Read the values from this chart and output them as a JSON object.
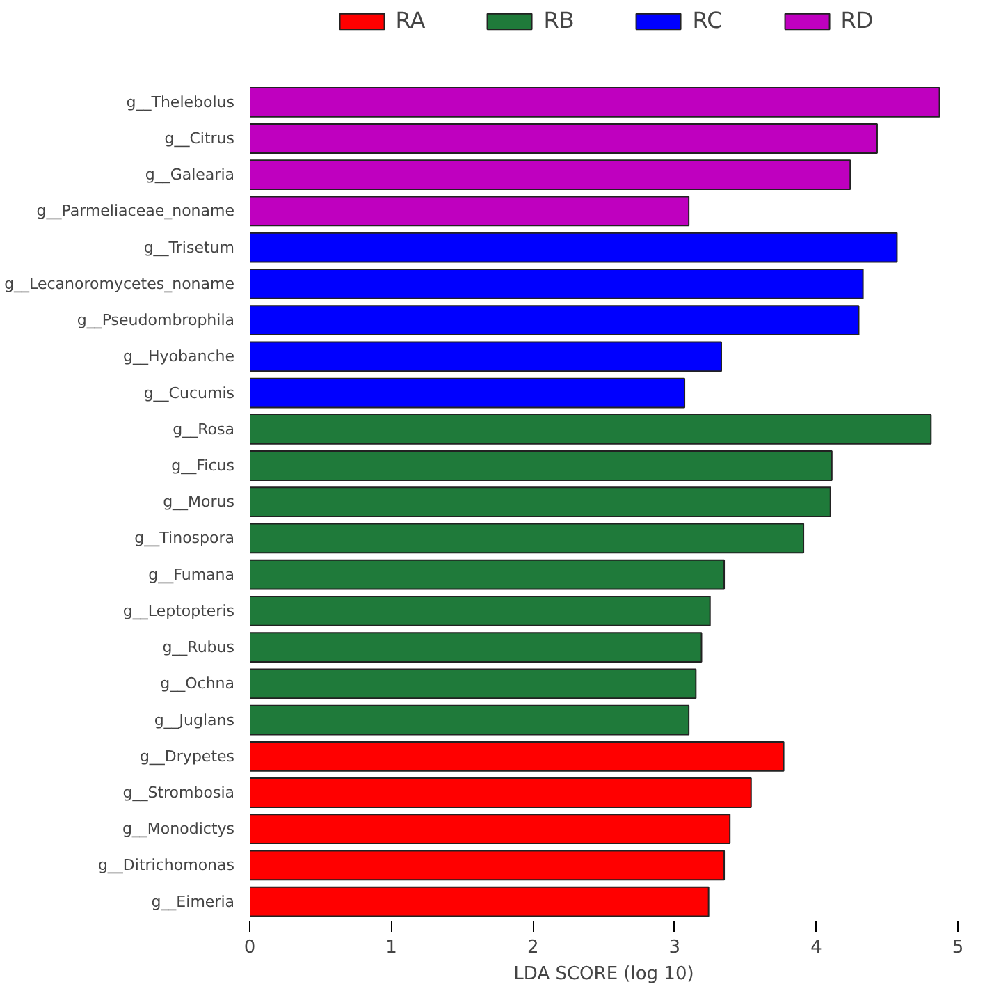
{
  "chart_data": {
    "type": "bar",
    "orientation": "horizontal",
    "xlabel": "LDA SCORE (log 10)",
    "categories": [
      "g__Thelebolus",
      "g__Citrus",
      "g__Galearia",
      "g__Parmeliaceae_noname",
      "g__Trisetum",
      "g__Lecanoromycetes_noname",
      "g__Pseudombrophila",
      "g__Hyobanche",
      "g__Cucumis",
      "g__Rosa",
      "g__Ficus",
      "g__Morus",
      "g__Tinospora",
      "g__Fumana",
      "g__Leptopteris",
      "g__Rubus",
      "g__Ochna",
      "g__Juglans",
      "g__Drypetes",
      "g__Strombosia",
      "g__Monodictys",
      "g__Ditrichomonas",
      "g__Eimeria"
    ],
    "series": [
      {
        "name": "RA",
        "color": "#ff0000",
        "values": [
          null,
          null,
          null,
          null,
          null,
          null,
          null,
          null,
          null,
          null,
          null,
          null,
          null,
          null,
          null,
          null,
          null,
          null,
          3.77,
          3.54,
          3.39,
          3.35,
          3.24
        ]
      },
      {
        "name": "RB",
        "color": "#1f7a3a",
        "values": [
          null,
          null,
          null,
          null,
          null,
          null,
          null,
          null,
          null,
          4.81,
          4.11,
          4.1,
          3.91,
          3.35,
          3.25,
          3.19,
          3.15,
          3.1,
          null,
          null,
          null,
          null,
          null
        ]
      },
      {
        "name": "RC",
        "color": "#0000ff",
        "values": [
          null,
          null,
          null,
          null,
          4.57,
          4.33,
          4.3,
          3.33,
          3.07,
          null,
          null,
          null,
          null,
          null,
          null,
          null,
          null,
          null,
          null,
          null,
          null,
          null,
          null
        ]
      },
      {
        "name": "RD",
        "color": "#bf00bf",
        "values": [
          4.87,
          4.43,
          4.24,
          3.1,
          null,
          null,
          null,
          null,
          null,
          null,
          null,
          null,
          null,
          null,
          null,
          null,
          null,
          null,
          null,
          null,
          null,
          null,
          null
        ]
      }
    ],
    "xlim": [
      0,
      5
    ],
    "xticks": [
      0,
      1,
      2,
      3,
      4,
      5
    ],
    "grid": false,
    "legend": "top"
  }
}
